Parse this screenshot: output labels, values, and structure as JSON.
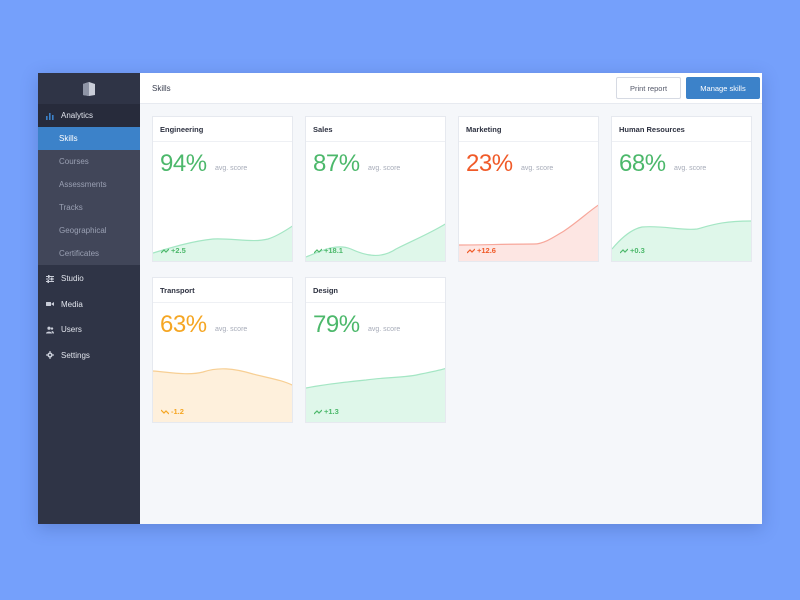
{
  "sidebar": {
    "logo_icon": "book-icon",
    "analytics_label": "Analytics",
    "sub_items": [
      "Skills",
      "Courses",
      "Assessments",
      "Tracks",
      "Geographical",
      "Certificates"
    ],
    "items": [
      {
        "label": "Studio",
        "icon": "sliders-icon"
      },
      {
        "label": "Media",
        "icon": "video-camera-icon"
      },
      {
        "label": "Users",
        "icon": "users-icon"
      },
      {
        "label": "Settings",
        "icon": "gear-icon"
      }
    ]
  },
  "header": {
    "title": "Skills",
    "print_label": "Print report",
    "manage_label": "Manage skills"
  },
  "cards": [
    {
      "name": "Engineering",
      "score": "94%",
      "avg_label": "avg. score",
      "delta": "+2.5",
      "color": "#4cb86b",
      "fill": "#dff7ea",
      "line": "#a4e6c4"
    },
    {
      "name": "Sales",
      "score": "87%",
      "avg_label": "avg. score",
      "delta": "+18.1",
      "color": "#4cb86b",
      "fill": "#dff7ea",
      "line": "#a4e6c4"
    },
    {
      "name": "Marketing",
      "score": "23%",
      "avg_label": "avg. score",
      "delta": "+12.6",
      "color": "#f05a28",
      "fill": "#fde6e3",
      "line": "#f7a79b"
    },
    {
      "name": "Human Resources",
      "score": "68%",
      "avg_label": "avg. score",
      "delta": "+0.3",
      "color": "#4cb86b",
      "fill": "#dff7ea",
      "line": "#a4e6c4"
    },
    {
      "name": "Transport",
      "score": "63%",
      "avg_label": "avg. score",
      "delta": "-1.2",
      "color": "#f5a623",
      "fill": "#fef0dc",
      "line": "#f7cf94"
    },
    {
      "name": "Design",
      "score": "79%",
      "avg_label": "avg. score",
      "delta": "+1.3",
      "color": "#4cb86b",
      "fill": "#dff7ea",
      "line": "#a4e6c4"
    }
  ]
}
